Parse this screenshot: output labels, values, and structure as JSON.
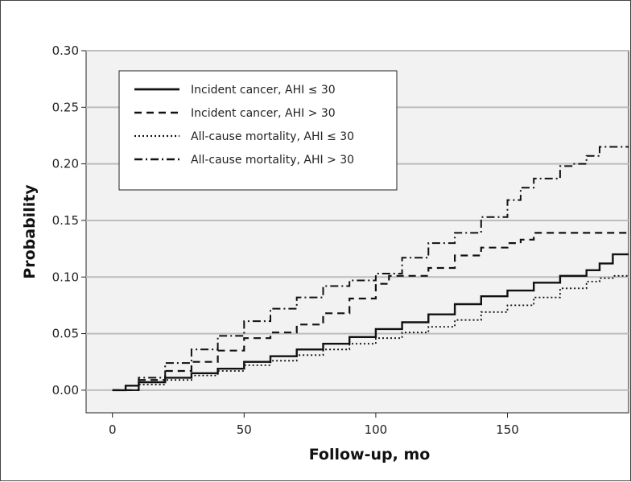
{
  "chart_data": {
    "type": "line",
    "title": "",
    "xlabel": "Follow-up, mo",
    "ylabel": "Probability",
    "xlim": [
      -10,
      196
    ],
    "ylim": [
      -0.02,
      0.3
    ],
    "xticks": [
      0,
      50,
      100,
      150
    ],
    "xtick_labels": [
      "0",
      "50",
      "100",
      "150"
    ],
    "yticks": [
      0.0,
      0.05,
      0.1,
      0.15,
      0.2,
      0.25,
      0.3
    ],
    "ytick_labels": [
      "0.00",
      "0.05",
      "0.10",
      "0.15",
      "0.20",
      "0.25",
      "0.30"
    ],
    "grid": "horizontal",
    "legend_position": "top-left",
    "series": [
      {
        "name": "Incident cancer, AHI ≤ 30",
        "dash": "solid",
        "color": "#111111",
        "x": [
          0,
          5,
          10,
          20,
          30,
          40,
          50,
          60,
          70,
          80,
          90,
          100,
          110,
          120,
          130,
          140,
          150,
          160,
          170,
          180,
          185,
          190,
          196
        ],
        "y": [
          0,
          0.004,
          0.007,
          0.011,
          0.015,
          0.019,
          0.025,
          0.03,
          0.036,
          0.041,
          0.047,
          0.054,
          0.06,
          0.067,
          0.076,
          0.083,
          0.088,
          0.095,
          0.101,
          0.106,
          0.112,
          0.12,
          0.12
        ]
      },
      {
        "name": "Incident cancer, AHI > 30",
        "dash": "dashed",
        "color": "#111111",
        "x": [
          0,
          10,
          20,
          30,
          40,
          50,
          60,
          70,
          80,
          90,
          100,
          105,
          110,
          120,
          130,
          140,
          150,
          155,
          160,
          196
        ],
        "y": [
          0,
          0.009,
          0.017,
          0.025,
          0.035,
          0.046,
          0.051,
          0.058,
          0.068,
          0.081,
          0.094,
          0.101,
          0.101,
          0.108,
          0.119,
          0.126,
          0.13,
          0.133,
          0.139,
          0.139
        ]
      },
      {
        "name": "All-cause mortality, AHI ≤ 30",
        "dash": "dotted",
        "color": "#111111",
        "x": [
          0,
          10,
          20,
          30,
          40,
          50,
          60,
          70,
          80,
          90,
          100,
          110,
          120,
          130,
          140,
          150,
          160,
          170,
          180,
          185,
          190,
          196
        ],
        "y": [
          0,
          0.005,
          0.009,
          0.013,
          0.017,
          0.022,
          0.026,
          0.031,
          0.036,
          0.041,
          0.046,
          0.051,
          0.056,
          0.062,
          0.069,
          0.075,
          0.082,
          0.09,
          0.096,
          0.099,
          0.101,
          0.101
        ]
      },
      {
        "name": "All-cause mortality, AHI > 30",
        "dash": "dashdot",
        "color": "#111111",
        "x": [
          0,
          10,
          20,
          30,
          40,
          50,
          60,
          70,
          80,
          90,
          100,
          110,
          120,
          130,
          140,
          150,
          155,
          160,
          170,
          175,
          180,
          185,
          196
        ],
        "y": [
          0,
          0.011,
          0.024,
          0.036,
          0.048,
          0.061,
          0.072,
          0.082,
          0.092,
          0.097,
          0.103,
          0.117,
          0.13,
          0.139,
          0.153,
          0.168,
          0.179,
          0.187,
          0.198,
          0.2,
          0.207,
          0.215,
          0.215
        ]
      }
    ]
  }
}
